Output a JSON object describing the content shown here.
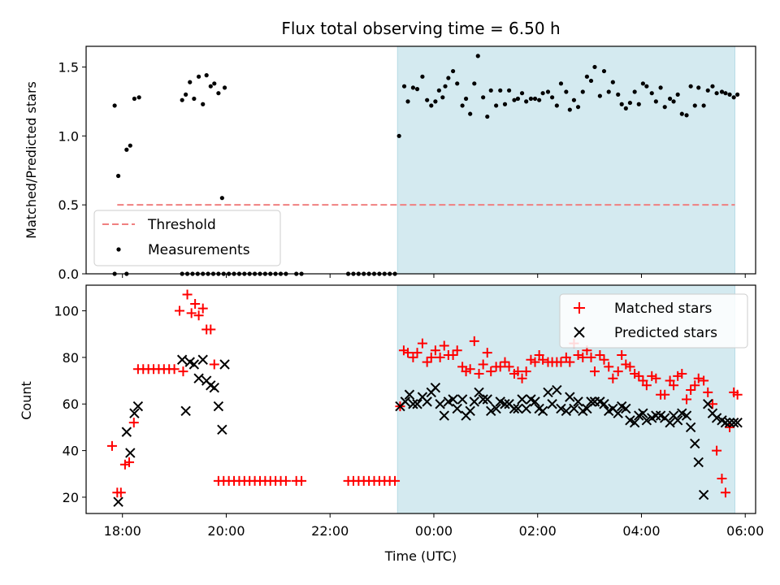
{
  "chart_data": [
    {
      "type": "scatter",
      "panel": "top",
      "title": "Flux total observing time = 6.50 h",
      "xlabel": "",
      "ylabel": "Matched/Predicted stars",
      "xlim": [
        17.3,
        30.2
      ],
      "ylim": [
        0,
        1.65
      ],
      "yticks": [
        0.0,
        0.5,
        1.0,
        1.5
      ],
      "ytick_labels": [
        "0.0",
        "0.5",
        "1.0",
        "1.5"
      ],
      "shaded_span": {
        "x0": 23.3,
        "x1": 29.8,
        "color": "#d4eaf0"
      },
      "legend": {
        "location": "lower-left",
        "entries": [
          "Threshold",
          "Measurements"
        ]
      },
      "series": [
        {
          "name": "Threshold",
          "style": "dashed-line",
          "color": "#f08080",
          "x": [
            17.9,
            29.8
          ],
          "y": [
            0.5,
            0.5
          ]
        },
        {
          "name": "Measurements",
          "style": "dot",
          "color": "#000000",
          "x": [
            17.85,
            17.92,
            18.08,
            18.15,
            18.23,
            18.32,
            19.15,
            19.22,
            19.3,
            19.38,
            19.47,
            19.55,
            19.62,
            19.7,
            19.77,
            19.85,
            19.92,
            19.97,
            23.33,
            23.43,
            23.5,
            23.6,
            23.68,
            23.78,
            23.87,
            23.95,
            24.03,
            24.1,
            24.17,
            24.22,
            24.28,
            24.37,
            24.45,
            24.55,
            24.62,
            24.7,
            24.78,
            24.85,
            24.95,
            25.03,
            25.1,
            25.2,
            25.28,
            25.37,
            25.45,
            25.55,
            25.62,
            25.7,
            25.78,
            25.87,
            25.95,
            26.03,
            26.1,
            26.2,
            26.28,
            26.37,
            26.45,
            26.55,
            26.62,
            26.7,
            26.78,
            26.87,
            26.95,
            27.03,
            27.1,
            27.2,
            27.28,
            27.37,
            27.45,
            27.55,
            27.62,
            27.7,
            27.78,
            27.87,
            27.95,
            28.03,
            28.1,
            28.2,
            28.28,
            28.37,
            28.45,
            28.55,
            28.62,
            28.7,
            28.78,
            28.87,
            28.95,
            29.03,
            29.1,
            29.2,
            29.28,
            29.37,
            29.45,
            29.55,
            29.62,
            29.7,
            29.78,
            29.85
          ],
          "y": [
            1.22,
            0.71,
            0.9,
            0.93,
            1.27,
            1.28,
            1.26,
            1.3,
            1.39,
            1.27,
            1.43,
            1.23,
            1.44,
            1.36,
            1.38,
            1.31,
            0.55,
            1.35,
            1.0,
            1.36,
            1.25,
            1.35,
            1.34,
            1.43,
            1.26,
            1.22,
            1.25,
            1.33,
            1.28,
            1.36,
            1.42,
            1.47,
            1.38,
            1.22,
            1.27,
            1.16,
            1.38,
            1.58,
            1.28,
            1.14,
            1.33,
            1.22,
            1.33,
            1.23,
            1.33,
            1.26,
            1.27,
            1.31,
            1.25,
            1.27,
            1.27,
            1.26,
            1.31,
            1.32,
            1.28,
            1.22,
            1.38,
            1.32,
            1.19,
            1.26,
            1.21,
            1.32,
            1.43,
            1.4,
            1.5,
            1.29,
            1.47,
            1.32,
            1.39,
            1.3,
            1.23,
            1.2,
            1.24,
            1.32,
            1.23,
            1.38,
            1.36,
            1.31,
            1.25,
            1.35,
            1.21,
            1.27,
            1.25,
            1.3,
            1.16,
            1.15,
            1.36,
            1.22,
            1.35,
            1.22,
            1.33,
            1.36,
            1.31,
            1.32,
            1.31,
            1.3,
            1.28,
            1.3
          ],
          "zeros_x": [
            17.85,
            18.08,
            19.15,
            19.25,
            19.35,
            19.45,
            19.55,
            19.65,
            19.75,
            19.85,
            19.95,
            20.05,
            20.15,
            20.25,
            20.35,
            20.45,
            20.55,
            20.65,
            20.75,
            20.85,
            20.95,
            21.05,
            21.15,
            21.35,
            21.45,
            22.35,
            22.45,
            22.55,
            22.65,
            22.75,
            22.85,
            22.95,
            23.05,
            23.15,
            23.25
          ]
        }
      ]
    },
    {
      "type": "scatter",
      "panel": "bottom",
      "title": "",
      "xlabel": "Time (UTC)",
      "ylabel": "Count",
      "xlim": [
        17.3,
        30.2
      ],
      "ylim": [
        13,
        111
      ],
      "yticks": [
        20,
        40,
        60,
        80,
        100
      ],
      "ytick_labels": [
        "20",
        "40",
        "60",
        "80",
        "100"
      ],
      "xticks": [
        18,
        20,
        22,
        24,
        26,
        28,
        30
      ],
      "xtick_labels": [
        "18:00",
        "20:00",
        "22:00",
        "00:00",
        "02:00",
        "04:00",
        "06:00"
      ],
      "shaded_span": {
        "x0": 23.3,
        "x1": 29.8,
        "color": "#d4eaf0"
      },
      "legend": {
        "location": "top-right",
        "entries": [
          "Matched stars",
          "Predicted stars"
        ]
      },
      "series": [
        {
          "name": "Matched stars",
          "marker": "+",
          "color": "#ff0000",
          "x": [
            17.8,
            17.9,
            17.97,
            18.05,
            18.13,
            18.22,
            18.3,
            18.4,
            18.5,
            18.6,
            18.7,
            18.8,
            18.9,
            19.0,
            19.1,
            19.17,
            19.25,
            19.33,
            19.4,
            19.47,
            19.55,
            19.62,
            19.7,
            19.77,
            19.85,
            19.95,
            20.05,
            20.15,
            20.25,
            20.35,
            20.45,
            20.55,
            20.65,
            20.75,
            20.85,
            20.95,
            21.05,
            21.15,
            21.35,
            21.45,
            22.35,
            22.45,
            22.55,
            22.65,
            22.75,
            22.85,
            22.95,
            23.05,
            23.15,
            23.25,
            23.35,
            23.42,
            23.5,
            23.6,
            23.68,
            23.78,
            23.87,
            23.95,
            24.03,
            24.12,
            24.2,
            24.28,
            24.37,
            24.45,
            24.55,
            24.62,
            24.7,
            24.78,
            24.87,
            24.95,
            25.03,
            25.1,
            25.2,
            25.28,
            25.37,
            25.45,
            25.55,
            25.62,
            25.7,
            25.78,
            25.87,
            25.95,
            26.03,
            26.1,
            26.2,
            26.28,
            26.37,
            26.45,
            26.55,
            26.62,
            26.7,
            26.78,
            26.87,
            26.95,
            27.03,
            27.1,
            27.2,
            27.28,
            27.37,
            27.45,
            27.55,
            27.62,
            27.7,
            27.78,
            27.87,
            27.95,
            28.03,
            28.1,
            28.2,
            28.28,
            28.37,
            28.45,
            28.55,
            28.62,
            28.7,
            28.78,
            28.87,
            28.95,
            29.03,
            29.1,
            29.2,
            29.28,
            29.37,
            29.45,
            29.55,
            29.62,
            29.7,
            29.78,
            29.85
          ],
          "y": [
            42,
            22,
            22,
            34,
            35,
            52,
            75,
            75,
            75,
            75,
            75,
            75,
            75,
            75,
            100,
            74,
            107,
            99,
            103,
            98,
            101,
            92,
            92,
            77,
            27,
            27,
            27,
            27,
            27,
            27,
            27,
            27,
            27,
            27,
            27,
            27,
            27,
            27,
            27,
            27,
            27,
            27,
            27,
            27,
            27,
            27,
            27,
            27,
            27,
            27,
            59,
            83,
            82,
            80,
            82,
            86,
            78,
            80,
            83,
            80,
            85,
            81,
            81,
            83,
            76,
            74,
            75,
            87,
            73,
            77,
            82,
            74,
            76,
            76,
            78,
            76,
            73,
            74,
            71,
            74,
            79,
            78,
            81,
            79,
            78,
            78,
            78,
            78,
            80,
            78,
            86,
            81,
            80,
            83,
            80,
            74,
            81,
            79,
            76,
            71,
            74,
            81,
            77,
            76,
            73,
            72,
            70,
            68,
            72,
            71,
            64,
            64,
            70,
            68,
            72,
            73,
            62,
            66,
            68,
            71,
            70,
            65,
            60,
            40,
            28,
            22,
            50,
            65,
            64
          ],
          "note": "points drawn in order"
        },
        {
          "name": "Predicted stars",
          "marker": "x",
          "color": "#000000",
          "x": [
            17.92,
            18.08,
            18.15,
            18.23,
            18.3,
            19.15,
            19.22,
            19.3,
            19.38,
            19.47,
            19.55,
            19.62,
            19.7,
            19.77,
            19.85,
            19.92,
            19.97,
            23.35,
            23.45,
            23.53,
            23.6,
            23.68,
            23.78,
            23.87,
            23.95,
            24.03,
            24.12,
            24.2,
            24.28,
            24.37,
            24.45,
            24.55,
            24.62,
            24.7,
            24.78,
            24.87,
            24.95,
            25.03,
            25.1,
            25.2,
            25.28,
            25.37,
            25.45,
            25.55,
            25.62,
            25.7,
            25.78,
            25.87,
            25.95,
            26.03,
            26.1,
            26.2,
            26.28,
            26.37,
            26.45,
            26.55,
            26.62,
            26.7,
            26.78,
            26.87,
            26.95,
            27.03,
            27.1,
            27.2,
            27.28,
            27.37,
            27.45,
            27.55,
            27.62,
            27.7,
            27.78,
            27.87,
            27.95,
            28.03,
            28.1,
            28.2,
            28.28,
            28.37,
            28.45,
            28.55,
            28.62,
            28.7,
            28.78,
            28.87,
            28.95,
            29.03,
            29.1,
            29.2,
            29.28,
            29.37,
            29.45,
            29.55,
            29.62,
            29.7,
            29.78,
            29.85
          ],
          "y": [
            18,
            48,
            39,
            56,
            59,
            79,
            57,
            78,
            77,
            71,
            79,
            70,
            68,
            67,
            59,
            49,
            77,
            59,
            61,
            64,
            60,
            60,
            63,
            61,
            65,
            67,
            60,
            55,
            61,
            62,
            58,
            62,
            55,
            57,
            61,
            65,
            62,
            62,
            57,
            58,
            61,
            60,
            60,
            58,
            58,
            62,
            58,
            62,
            61,
            58,
            57,
            65,
            60,
            66,
            58,
            57,
            63,
            58,
            61,
            57,
            58,
            61,
            61,
            61,
            60,
            57,
            58,
            56,
            59,
            58,
            53,
            52,
            55,
            56,
            53,
            54,
            55,
            55,
            54,
            52,
            55,
            53,
            56,
            55,
            50,
            43,
            35,
            21,
            60,
            56,
            54,
            53,
            52,
            52,
            52,
            52
          ]
        }
      ]
    }
  ]
}
